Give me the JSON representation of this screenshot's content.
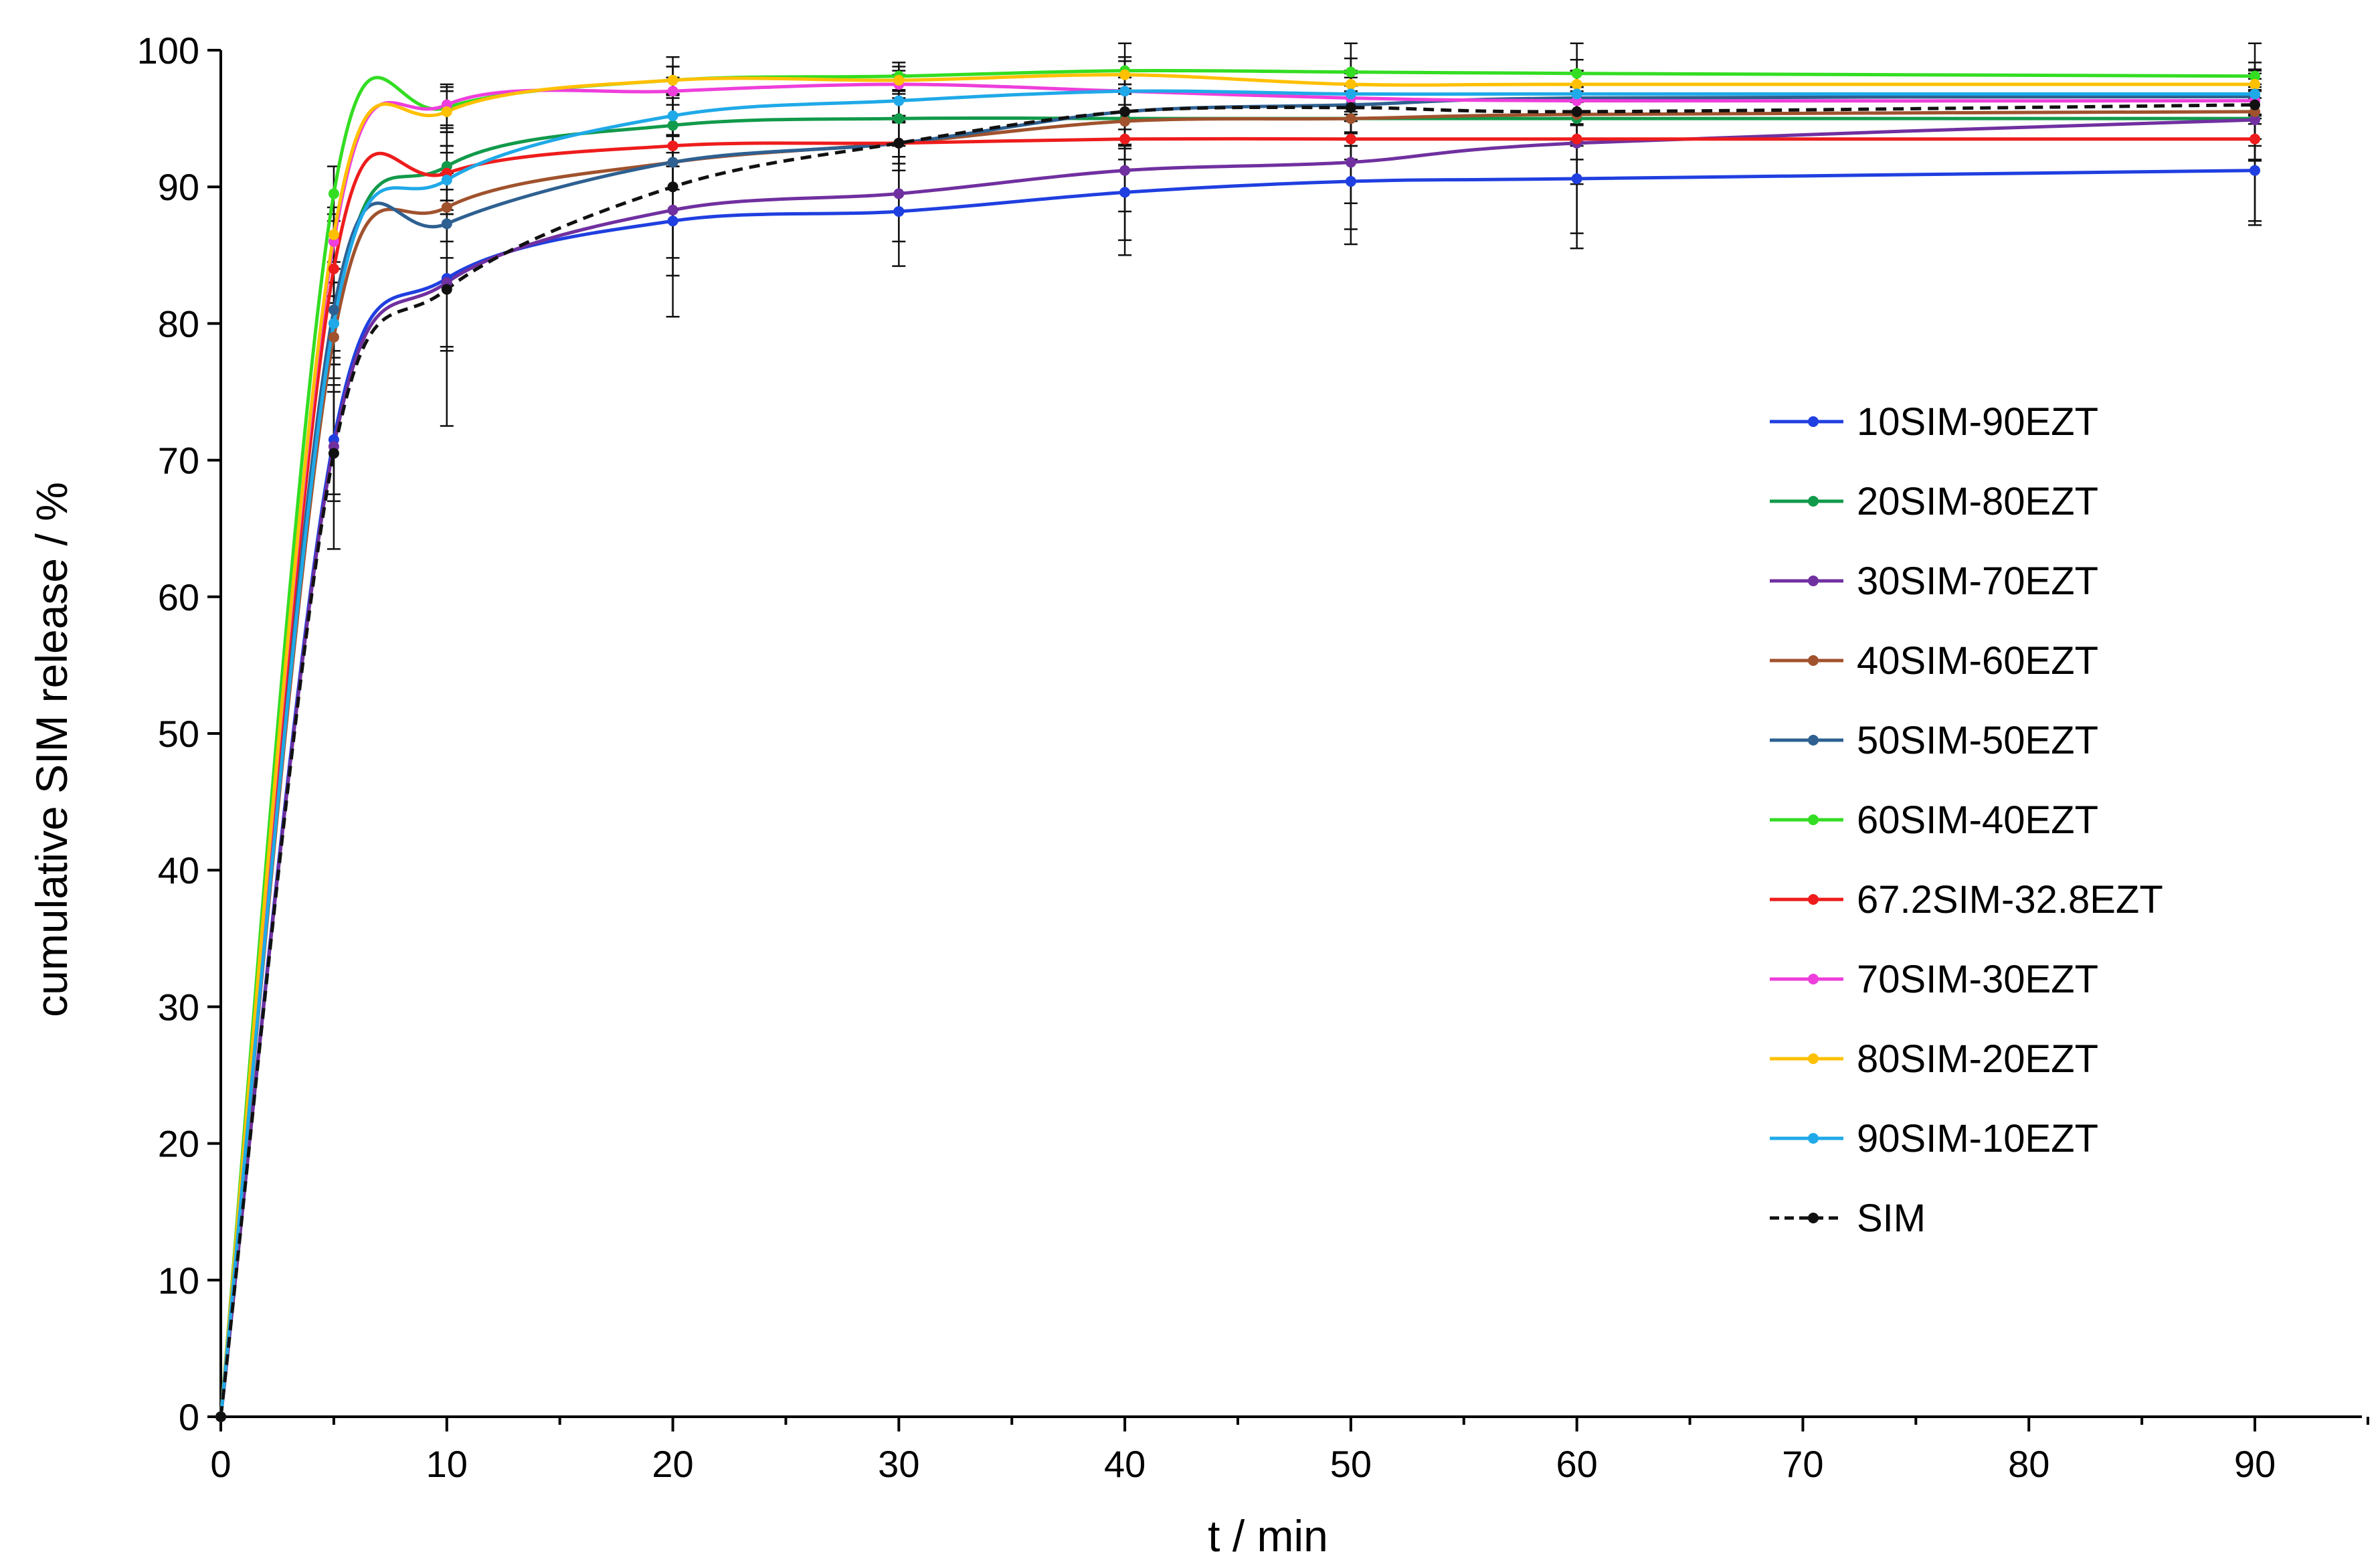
{
  "chart_data": {
    "type": "line",
    "title": "",
    "xlabel": "t / min",
    "ylabel": "cumulative  SIM  release / %",
    "xlim": [
      0,
      95
    ],
    "ylim": [
      0,
      100
    ],
    "xticks": [
      0,
      10,
      20,
      30,
      40,
      50,
      60,
      70,
      80,
      90
    ],
    "yticks": [
      0,
      10,
      20,
      30,
      40,
      50,
      60,
      70,
      80,
      90,
      100
    ],
    "grid": false,
    "legend_position": "right",
    "x": [
      0,
      5,
      10,
      20,
      30,
      40,
      50,
      60,
      90
    ],
    "series": [
      {
        "name": "10SIM-90EZT",
        "color": "#1f3fe0",
        "dashed": false,
        "values": [
          0,
          71.5,
          83.3,
          87.5,
          88.2,
          89.6,
          90.4,
          90.6,
          91.2
        ],
        "errors": [
          0,
          4.0,
          5.0,
          4.0,
          4.0,
          3.5,
          3.5,
          4.0,
          4.0
        ]
      },
      {
        "name": "20SIM-80EZT",
        "color": "#119a4a",
        "dashed": false,
        "values": [
          0,
          80.0,
          91.5,
          94.5,
          95.0,
          95.0,
          95.0,
          95.0,
          95.0
        ],
        "errors": [
          0,
          3.0,
          2.5,
          2.0,
          2.0,
          2.0,
          2.0,
          2.0,
          2.0
        ]
      },
      {
        "name": "30SIM-70EZT",
        "color": "#7030a0",
        "dashed": false,
        "values": [
          0,
          71.0,
          83.0,
          88.3,
          89.5,
          91.2,
          91.8,
          93.2,
          94.9
        ],
        "errors": [
          0,
          4.0,
          5.0,
          3.5,
          3.5,
          3.0,
          3.0,
          3.0,
          3.0
        ]
      },
      {
        "name": "40SIM-60EZT",
        "color": "#a0522d",
        "dashed": false,
        "values": [
          0,
          79.0,
          88.5,
          91.8,
          93.2,
          94.8,
          95.0,
          95.3,
          95.5
        ],
        "errors": [
          0,
          3.0,
          2.5,
          2.0,
          2.0,
          2.0,
          2.0,
          2.0,
          2.0
        ]
      },
      {
        "name": "50SIM-50EZT",
        "color": "#2e6091",
        "dashed": false,
        "values": [
          0,
          81.0,
          87.3,
          91.8,
          93.2,
          95.5,
          96.0,
          96.5,
          96.6
        ],
        "errors": [
          0,
          3.0,
          2.5,
          2.0,
          2.0,
          2.0,
          2.0,
          2.0,
          2.0
        ]
      },
      {
        "name": "60SIM-40EZT",
        "color": "#33dd22",
        "dashed": false,
        "values": [
          0,
          89.5,
          95.8,
          97.8,
          98.1,
          98.5,
          98.4,
          98.3,
          98.1
        ],
        "errors": [
          0,
          2.0,
          1.5,
          1.0,
          1.0,
          1.0,
          1.0,
          1.0,
          1.0
        ]
      },
      {
        "name": "67.2SIM-32.8EZT",
        "color": "#ee1c1c",
        "dashed": false,
        "values": [
          0,
          84.0,
          91.0,
          93.0,
          93.2,
          93.5,
          93.5,
          93.5,
          93.5
        ],
        "errors": [
          0,
          2.5,
          2.0,
          1.5,
          1.5,
          1.5,
          1.5,
          1.5,
          1.5
        ]
      },
      {
        "name": "70SIM-30EZT",
        "color": "#ee3edb",
        "dashed": false,
        "values": [
          0,
          86.0,
          96.0,
          97.0,
          97.5,
          97.0,
          96.5,
          96.3,
          96.3
        ],
        "errors": [
          0,
          2.0,
          1.5,
          1.0,
          1.0,
          1.0,
          1.0,
          1.0,
          1.0
        ]
      },
      {
        "name": "80SIM-20EZT",
        "color": "#ffc000",
        "dashed": false,
        "values": [
          0,
          86.5,
          95.5,
          97.8,
          97.8,
          98.2,
          97.5,
          97.5,
          97.5
        ],
        "errors": [
          0,
          2.0,
          1.5,
          1.0,
          1.0,
          1.0,
          1.0,
          1.0,
          1.0
        ]
      },
      {
        "name": "90SIM-10EZT",
        "color": "#1fa9e8",
        "dashed": false,
        "values": [
          0,
          80.0,
          90.5,
          95.2,
          96.3,
          97.0,
          96.8,
          96.8,
          96.8
        ],
        "errors": [
          0,
          3.0,
          2.5,
          1.5,
          1.5,
          1.5,
          1.5,
          1.5,
          1.5
        ]
      },
      {
        "name": "SIM",
        "color": "#111111",
        "dashed": true,
        "values": [
          0,
          70.5,
          82.5,
          90.0,
          93.2,
          95.5,
          95.8,
          95.5,
          96.0
        ],
        "errors": [
          0,
          7.0,
          10.0,
          9.5,
          5.0,
          10.5,
          10.0,
          10.0,
          8.5
        ]
      }
    ]
  }
}
